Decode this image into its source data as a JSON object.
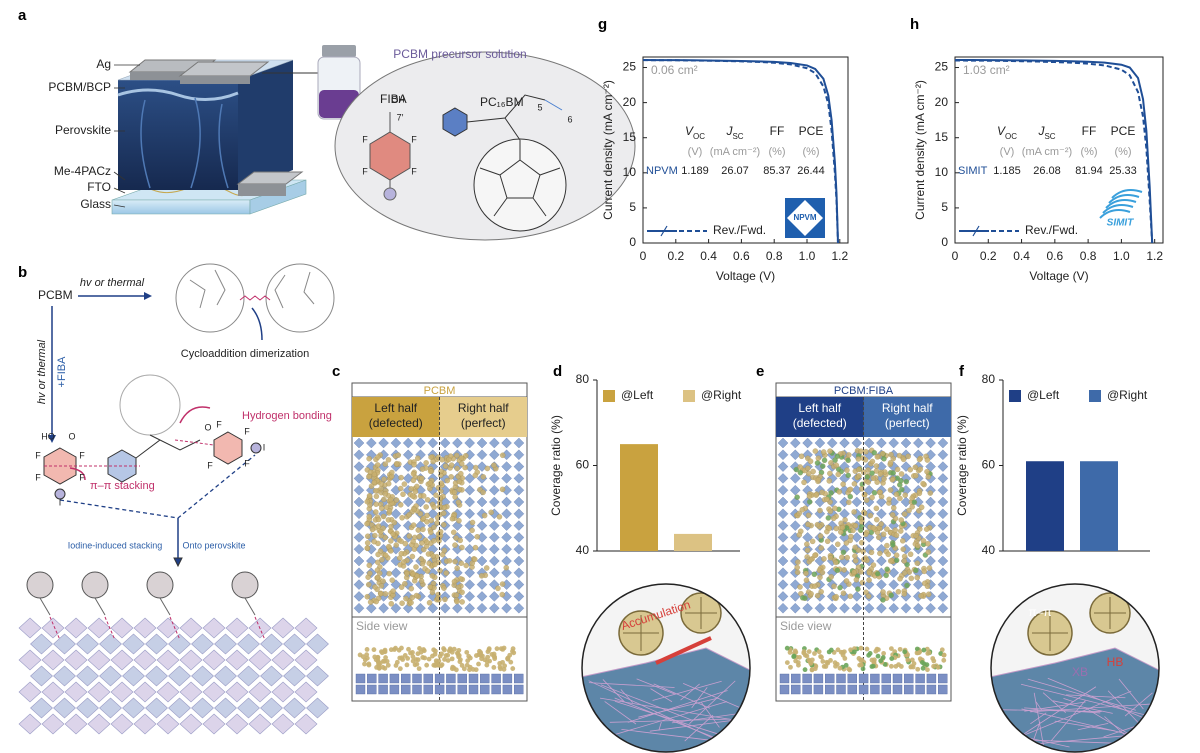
{
  "panels": {
    "a": {
      "label": "a",
      "layers": [
        "Ag",
        "PCBM/BCP",
        "Perovskite",
        "Me-4PACz",
        "FTO",
        "Glass"
      ],
      "solution_title": "PCBM precursor solution",
      "fiba": "FIBA",
      "pcbm": "PC₁₆BM",
      "atom_labels": [
        "7′",
        "OH",
        "F",
        "F",
        "F",
        "F",
        "5",
        "6"
      ]
    },
    "b": {
      "label": "b",
      "pcbm": "PCBM",
      "top_arrow": "hv or thermal",
      "dimer": "Cycloaddition dimerization",
      "side_arrow": "hv or thermal",
      "side_arrow_2": "+FIBA",
      "h_bond": "Hydrogen bonding",
      "pi_stack": "π–π stacking",
      "iodine": "Iodine-induced stacking",
      "onto": "Onto perovskite",
      "atom_labels": [
        "HO",
        "O",
        "F",
        "F",
        "F",
        "F",
        "I",
        "O",
        "F",
        "F",
        "F",
        "F",
        "I"
      ]
    },
    "c": {
      "label": "c",
      "title": "PCBM",
      "left": [
        "Left half",
        "(defected)"
      ],
      "right": [
        "Right half",
        "(perfect)"
      ],
      "side": "Side view"
    },
    "e": {
      "label": "e",
      "title": "PCBM:FIBA",
      "left": [
        "Left half",
        "(defected)"
      ],
      "right": [
        "Right half",
        "(perfect)"
      ],
      "side": "Side view"
    }
  },
  "chart_data": [
    {
      "type": "line",
      "panel_label": "g",
      "xlabel": "Voltage (V)",
      "ylabel": "Current density (mA cm⁻²)",
      "area": "0.06 cm²",
      "x": [
        0,
        0.1,
        0.2,
        0.3,
        0.4,
        0.5,
        0.6,
        0.7,
        0.8,
        0.9,
        1.0,
        1.05,
        1.1,
        1.13,
        1.15,
        1.17,
        1.18,
        1.189
      ],
      "series": [
        {
          "style": "solid",
          "color": "#1f4e96",
          "values": [
            26.07,
            26.06,
            26.05,
            26.03,
            26.0,
            25.97,
            25.93,
            25.88,
            25.8,
            25.65,
            25.3,
            24.8,
            23.4,
            21.0,
            17.5,
            11.5,
            7.0,
            0
          ]
        },
        {
          "style": "dashed",
          "color": "#1f4e96",
          "values": [
            26.05,
            26.04,
            26.03,
            26.0,
            25.97,
            25.93,
            25.88,
            25.8,
            25.68,
            25.45,
            24.9,
            24.2,
            22.3,
            19.8,
            16.0,
            10.0,
            6.0,
            0
          ]
        }
      ],
      "legend": "Rev./Fwd.",
      "xlim": [
        0,
        1.25
      ],
      "xticks": [
        0,
        0.2,
        0.4,
        0.6,
        0.8,
        {
          "value": 1,
          "label": "1.0"
        },
        1.2
      ],
      "ylim": [
        0,
        26.5
      ],
      "yticks": [
        0,
        5,
        10,
        15,
        20,
        25
      ],
      "table": {
        "headers": [
          {
            "text": "V",
            "sub": "OC"
          },
          {
            "text": "J",
            "sub": "SC"
          },
          {
            "text": "FF"
          },
          {
            "text": "PCE"
          }
        ],
        "units": [
          "(V)",
          "(mA cm⁻²)",
          "(%)",
          "(%)"
        ],
        "row_name": "NPVM",
        "row": [
          1.189,
          26.07,
          85.37,
          26.44
        ]
      },
      "logo": "NPVM"
    },
    {
      "type": "line",
      "panel_label": "h",
      "xlabel": "Voltage (V)",
      "ylabel": "Current density (mA cm⁻²)",
      "area": "1.03 cm²",
      "x": [
        0,
        0.1,
        0.2,
        0.3,
        0.4,
        0.5,
        0.6,
        0.7,
        0.8,
        0.9,
        1.0,
        1.05,
        1.1,
        1.13,
        1.15,
        1.17,
        1.185
      ],
      "series": [
        {
          "style": "solid",
          "color": "#1f4e96",
          "values": [
            26.08,
            26.07,
            26.06,
            26.04,
            26.02,
            25.99,
            25.95,
            25.9,
            25.82,
            25.7,
            25.4,
            25.0,
            23.5,
            20.5,
            16.0,
            8.0,
            0
          ]
        },
        {
          "style": "dashed",
          "color": "#1f4e96",
          "values": [
            26.0,
            25.99,
            25.97,
            25.94,
            25.9,
            25.85,
            25.78,
            25.7,
            25.55,
            25.3,
            24.7,
            23.9,
            21.5,
            18.0,
            13.5,
            6.0,
            0
          ]
        }
      ],
      "legend": "Rev./Fwd.",
      "xlim": [
        0,
        1.25
      ],
      "xticks": [
        0,
        0.2,
        0.4,
        0.6,
        0.8,
        {
          "value": 1,
          "label": "1.0"
        },
        1.2
      ],
      "ylim": [
        0,
        26.5
      ],
      "yticks": [
        0,
        5,
        10,
        15,
        20,
        25
      ],
      "table": {
        "headers": [
          {
            "text": "V",
            "sub": "OC"
          },
          {
            "text": "J",
            "sub": "SC"
          },
          {
            "text": "FF"
          },
          {
            "text": "PCE"
          }
        ],
        "units": [
          "(V)",
          "(mA cm⁻²)",
          "(%)",
          "(%)"
        ],
        "row_name": "SIMIT",
        "row": [
          1.185,
          26.08,
          81.94,
          25.33
        ]
      },
      "logo": "SIMIT"
    },
    {
      "type": "bar",
      "panel_label": "d",
      "ylabel": "Coverage ratio (%)",
      "series": [
        {
          "name": "@Left",
          "color": "#c9a23f",
          "values": [
            65
          ]
        },
        {
          "name": "@Right",
          "color": "#dcc283",
          "values": [
            44
          ]
        }
      ],
      "ylim": [
        40,
        80
      ],
      "yticks": [
        40,
        60,
        80
      ],
      "inset_labels": [
        "Accumulation"
      ]
    },
    {
      "type": "bar",
      "panel_label": "f",
      "ylabel": "Coverage ratio (%)",
      "series": [
        {
          "name": "@Left",
          "color": "#1f3f86",
          "values": [
            61
          ]
        },
        {
          "name": "@Right",
          "color": "#3e6aa9",
          "values": [
            61
          ]
        }
      ],
      "ylim": [
        40,
        80
      ],
      "yticks": [
        40,
        60,
        80
      ],
      "inset_labels": [
        "π–π",
        "XB",
        "HB"
      ]
    }
  ]
}
